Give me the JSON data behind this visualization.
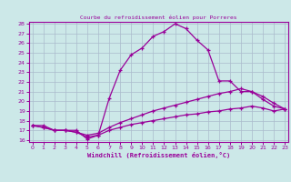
{
  "title": "Courbe du refroidissement éolien pour Porreres",
  "xlabel": "Windchill (Refroidissement éolien,°C)",
  "bg_color": "#cce8e8",
  "line_color": "#990099",
  "grid_color": "#aabbcc",
  "xmin": 0,
  "xmax": 23,
  "ymin": 16,
  "ymax": 28,
  "yticks": [
    16,
    17,
    18,
    19,
    20,
    21,
    22,
    23,
    24,
    25,
    26,
    27,
    28
  ],
  "xticks": [
    0,
    1,
    2,
    3,
    4,
    5,
    6,
    7,
    8,
    9,
    10,
    11,
    12,
    13,
    14,
    15,
    16,
    17,
    18,
    19,
    20,
    21,
    22,
    23
  ],
  "curve1_x": [
    0,
    1,
    2,
    3,
    4,
    5,
    6,
    7,
    8,
    9,
    10,
    11,
    12,
    13,
    14,
    15,
    16,
    17,
    18,
    19,
    20,
    21,
    22,
    23
  ],
  "curve1_y": [
    17.5,
    17.5,
    17.0,
    17.0,
    17.0,
    16.1,
    16.5,
    20.3,
    23.2,
    24.8,
    25.5,
    26.7,
    27.2,
    28.0,
    27.5,
    26.3,
    25.3,
    22.1,
    22.1,
    21.0,
    21.0,
    20.2,
    19.5,
    19.2
  ],
  "curve2_x": [
    0,
    1,
    2,
    3,
    4,
    5,
    6,
    7,
    8,
    9,
    10,
    11,
    12,
    13,
    14,
    15,
    16,
    17,
    18,
    19,
    20,
    21,
    22,
    23
  ],
  "curve2_y": [
    17.5,
    17.3,
    17.0,
    17.0,
    16.8,
    16.5,
    16.7,
    17.3,
    17.8,
    18.2,
    18.6,
    19.0,
    19.3,
    19.6,
    19.9,
    20.2,
    20.5,
    20.8,
    21.0,
    21.3,
    21.0,
    20.5,
    19.8,
    19.2
  ],
  "curve3_x": [
    0,
    1,
    2,
    3,
    4,
    5,
    6,
    7,
    8,
    9,
    10,
    11,
    12,
    13,
    14,
    15,
    16,
    17,
    18,
    19,
    20,
    21,
    22,
    23
  ],
  "curve3_y": [
    17.5,
    17.3,
    17.0,
    17.0,
    16.8,
    16.3,
    16.5,
    17.0,
    17.3,
    17.6,
    17.8,
    18.0,
    18.2,
    18.4,
    18.6,
    18.7,
    18.9,
    19.0,
    19.2,
    19.3,
    19.5,
    19.3,
    19.0,
    19.2
  ]
}
